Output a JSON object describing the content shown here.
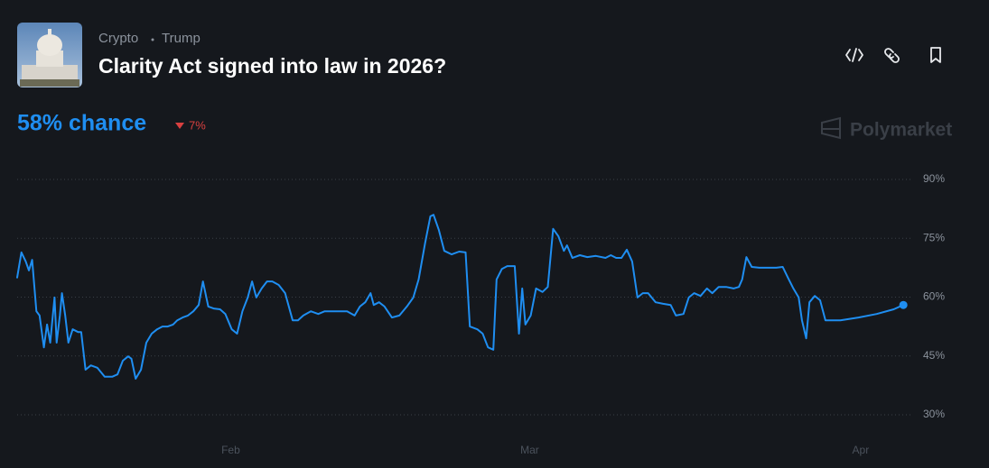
{
  "header": {
    "category": "Crypto",
    "tag": "Trump",
    "title": "Clarity Act signed into law in 2026?",
    "chance": "58% chance",
    "change": "7%",
    "brand": "Polymarket"
  },
  "chart_data": {
    "type": "line",
    "x": [
      12.0,
      12.4,
      12.8,
      13.1,
      13.4,
      13.8,
      14.1,
      14.5,
      14.8,
      15.1,
      15.5,
      15.7,
      16.0,
      16.2,
      16.5,
      16.8,
      17.2,
      17.7,
      18.0,
      18.4,
      18.9,
      19.5,
      20.2,
      20.9,
      21.4,
      21.9,
      22.4,
      22.7,
      23.1,
      23.6,
      24.1,
      24.6,
      25.1,
      25.6,
      26.1,
      26.6,
      27.0,
      27.5,
      28.0,
      28.5,
      29.0,
      29.4,
      29.9,
      30.4,
      31.0,
      31.5,
      32.1,
      32.6,
      33.1,
      33.6,
      34.0,
      34.4,
      34.9,
      35.4,
      35.9,
      36.5,
      37.1,
      37.8,
      38.3,
      38.8,
      39.5,
      40.2,
      40.8,
      41.9,
      42.9,
      43.6,
      44.1,
      44.6,
      45.1,
      45.4,
      45.9,
      46.4,
      47.1,
      47.8,
      48.5,
      49.1,
      49.6,
      50.2,
      50.7,
      51.0,
      51.5,
      52.0,
      52.7,
      53.4,
      54.0,
      54.4,
      55.1,
      55.6,
      56.1,
      56.6,
      56.9,
      57.4,
      57.9,
      58.6,
      59.0,
      59.3,
      59.6,
      60.1,
      60.6,
      61.2,
      61.7,
      62.2,
      62.7,
      63.2,
      63.5,
      64.0,
      64.7,
      65.4,
      66.2,
      67.1,
      67.6,
      68.1,
      68.6,
      69.1,
      69.6,
      70.1,
      70.6,
      71.1,
      71.8,
      72.5,
      73.2,
      73.7,
      74.4,
      74.9,
      75.4,
      76.0,
      76.6,
      77.1,
      77.7,
      78.4,
      79.1,
      79.6,
      79.9,
      80.3,
      80.8,
      81.5,
      82.3,
      83.1,
      83.7,
      84.2,
      84.7,
      85.2,
      85.5,
      85.9,
      86.2,
      86.7,
      87.2,
      87.7,
      89.1,
      90.8,
      92.5,
      94.1,
      95.0
    ],
    "series": [
      {
        "color": "#1f8ef1",
        "values": [
          65.0,
          71.4,
          69.1,
          66.8,
          69.5,
          56.4,
          55.3,
          47.2,
          53.0,
          48.4,
          59.9,
          48.4,
          55.3,
          61.0,
          55.3,
          48.4,
          51.8,
          51.1,
          51.1,
          41.5,
          42.6,
          42.0,
          39.7,
          39.7,
          40.3,
          43.8,
          44.9,
          44.3,
          39.2,
          41.5,
          48.4,
          50.7,
          51.8,
          52.5,
          52.5,
          53.0,
          54.1,
          54.8,
          55.3,
          56.4,
          58.0,
          64.0,
          57.6,
          57.1,
          56.9,
          55.7,
          51.8,
          50.7,
          56.4,
          59.9,
          64.0,
          59.9,
          62.2,
          64.0,
          64.0,
          63.1,
          61.0,
          54.1,
          54.1,
          55.3,
          56.4,
          55.7,
          56.4,
          56.4,
          56.4,
          55.3,
          57.6,
          58.7,
          61.0,
          58.0,
          58.7,
          57.6,
          54.8,
          55.3,
          57.6,
          59.9,
          64.5,
          73.7,
          80.6,
          81.0,
          77.1,
          71.8,
          70.9,
          71.6,
          71.4,
          52.5,
          51.8,
          50.7,
          47.2,
          46.6,
          64.5,
          67.2,
          67.9,
          67.9,
          50.7,
          62.2,
          53.0,
          55.3,
          62.2,
          61.3,
          62.6,
          77.4,
          75.5,
          71.8,
          73.2,
          70.0,
          70.7,
          70.2,
          70.5,
          70.0,
          70.7,
          70.0,
          70.0,
          72.1,
          69.1,
          59.9,
          61.0,
          61.0,
          58.7,
          58.3,
          58.0,
          55.3,
          55.7,
          59.9,
          61.0,
          60.3,
          62.2,
          61.0,
          62.6,
          62.6,
          62.2,
          62.6,
          64.5,
          70.2,
          67.7,
          67.5,
          67.5,
          67.5,
          67.7,
          64.9,
          62.2,
          59.9,
          54.1,
          49.5,
          58.7,
          60.3,
          59.2,
          54.1,
          54.1,
          54.8,
          55.7,
          56.9,
          58.0
        ]
      }
    ],
    "xlim": [
      12,
      96
    ],
    "xticks": [
      {
        "value": 32,
        "label": "Feb"
      },
      {
        "value": 60,
        "label": "Mar"
      },
      {
        "value": 91,
        "label": "Apr"
      }
    ],
    "ylim": [
      26,
      94
    ],
    "yticks": [
      {
        "value": 30,
        "label": "30%"
      },
      {
        "value": 45,
        "label": "45%"
      },
      {
        "value": 60,
        "label": "60%"
      },
      {
        "value": 75,
        "label": "75%"
      },
      {
        "value": 90,
        "label": "90%"
      }
    ],
    "grid": true
  }
}
